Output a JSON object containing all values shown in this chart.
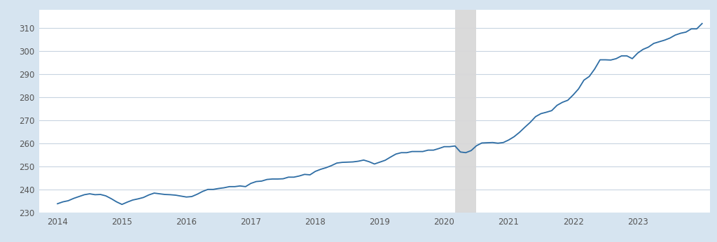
{
  "background_color": "#d6e4f0",
  "plot_background_color": "#ffffff",
  "line_color": "#2e6da4",
  "line_width": 1.3,
  "shade_start": 2020.17,
  "shade_end": 2020.5,
  "shade_color": "#d8d8d8",
  "shade_alpha": 0.95,
  "ylim": [
    230,
    318
  ],
  "yticks": [
    230,
    240,
    250,
    260,
    270,
    280,
    290,
    300,
    310
  ],
  "xlim": [
    2013.72,
    2024.12
  ],
  "xticks": [
    2014,
    2015,
    2016,
    2017,
    2018,
    2019,
    2020,
    2021,
    2022,
    2023
  ],
  "grid_color": "#c8d4e0",
  "data": {
    "dates": [
      2014.0,
      2014.083,
      2014.167,
      2014.25,
      2014.333,
      2014.417,
      2014.5,
      2014.583,
      2014.667,
      2014.75,
      2014.833,
      2014.917,
      2015.0,
      2015.083,
      2015.167,
      2015.25,
      2015.333,
      2015.417,
      2015.5,
      2015.583,
      2015.667,
      2015.75,
      2015.833,
      2015.917,
      2016.0,
      2016.083,
      2016.167,
      2016.25,
      2016.333,
      2016.417,
      2016.5,
      2016.583,
      2016.667,
      2016.75,
      2016.833,
      2016.917,
      2017.0,
      2017.083,
      2017.167,
      2017.25,
      2017.333,
      2017.417,
      2017.5,
      2017.583,
      2017.667,
      2017.75,
      2017.833,
      2017.917,
      2018.0,
      2018.083,
      2018.167,
      2018.25,
      2018.333,
      2018.417,
      2018.5,
      2018.583,
      2018.667,
      2018.75,
      2018.833,
      2018.917,
      2019.0,
      2019.083,
      2019.167,
      2019.25,
      2019.333,
      2019.417,
      2019.5,
      2019.583,
      2019.667,
      2019.75,
      2019.833,
      2019.917,
      2020.0,
      2020.083,
      2020.167,
      2020.25,
      2020.333,
      2020.417,
      2020.5,
      2020.583,
      2020.667,
      2020.75,
      2020.833,
      2020.917,
      2021.0,
      2021.083,
      2021.167,
      2021.25,
      2021.333,
      2021.417,
      2021.5,
      2021.583,
      2021.667,
      2021.75,
      2021.833,
      2021.917,
      2022.0,
      2022.083,
      2022.167,
      2022.25,
      2022.333,
      2022.417,
      2022.5,
      2022.583,
      2022.667,
      2022.75,
      2022.833,
      2022.917,
      2023.0,
      2023.083,
      2023.167,
      2023.25,
      2023.333,
      2023.417,
      2023.5,
      2023.583,
      2023.667,
      2023.75,
      2023.833,
      2023.917,
      2024.0
    ],
    "values": [
      234.0,
      234.8,
      235.3,
      236.3,
      237.1,
      237.9,
      238.3,
      237.9,
      238.0,
      237.4,
      236.2,
      234.8,
      233.7,
      234.7,
      235.6,
      236.1,
      236.7,
      237.8,
      238.6,
      238.3,
      238.0,
      237.9,
      237.7,
      237.3,
      236.9,
      237.1,
      238.1,
      239.3,
      240.2,
      240.2,
      240.6,
      240.9,
      241.4,
      241.4,
      241.7,
      241.4,
      242.8,
      243.6,
      243.8,
      244.5,
      244.7,
      244.7,
      244.8,
      245.5,
      245.5,
      246.0,
      246.7,
      246.5,
      248.0,
      248.9,
      249.6,
      250.5,
      251.6,
      251.9,
      252.0,
      252.1,
      252.4,
      252.9,
      252.2,
      251.2,
      252.0,
      252.8,
      254.2,
      255.5,
      256.1,
      256.1,
      256.6,
      256.6,
      256.6,
      257.2,
      257.2,
      257.9,
      258.7,
      258.7,
      259.0,
      256.4,
      256.1,
      257.0,
      259.1,
      260.3,
      260.4,
      260.5,
      260.2,
      260.5,
      261.6,
      263.0,
      264.9,
      267.1,
      269.2,
      271.7,
      273.0,
      273.6,
      274.3,
      276.6,
      277.9,
      278.8,
      281.1,
      283.7,
      287.5,
      289.1,
      292.3,
      296.3,
      296.3,
      296.2,
      296.8,
      298.0,
      298.0,
      296.8,
      299.2,
      300.8,
      301.8,
      303.4,
      304.1,
      304.8,
      305.7,
      307.0,
      307.8,
      308.3,
      309.7,
      309.7,
      312.0
    ]
  }
}
